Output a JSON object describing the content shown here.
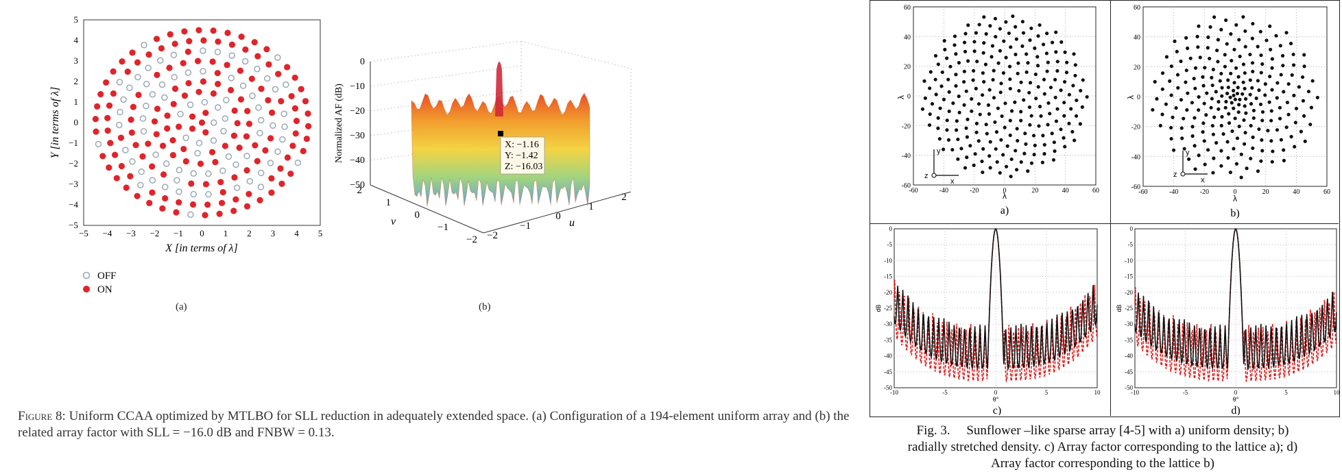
{
  "left_figure": {
    "panel_a": {
      "xlabel": "X [in terms of λ]",
      "ylabel": "Y [in terms of λ]",
      "x_ticks": [
        "−5",
        "−4",
        "−3",
        "−2",
        "−1",
        "0",
        "1",
        "2",
        "3",
        "4",
        "5"
      ],
      "y_ticks": [
        "5",
        "4",
        "3",
        "2",
        "1",
        "0",
        "−1",
        "−2",
        "−3",
        "−4",
        "−5"
      ],
      "legend_off": "OFF",
      "legend_on": "ON",
      "sublabel": "(a)"
    },
    "panel_b": {
      "zlabel": "Normalized AF (dB)",
      "z_ticks": [
        "0",
        "−10",
        "−20",
        "−30",
        "−40",
        "−50"
      ],
      "v_label": "v",
      "u_label": "u",
      "v_ticks": [
        "2",
        "1",
        "0",
        "−1",
        "−2"
      ],
      "u_ticks": [
        "−2",
        "−1",
        "0",
        "1",
        "2"
      ],
      "tooltip_x": "X: −1.16",
      "tooltip_y": "Y: −1.42",
      "tooltip_z": "Z: −16.03",
      "sublabel": "(b)"
    },
    "caption_prefix": "Figure 8:",
    "caption_text": "Uniform CCAA optimized by MTLBO for SLL reduction in adequately extended space. (a) Configuration of a 194-element uniform array and (b) the related array factor with SLL = −16.0 dB and FNBW = 0.13."
  },
  "right_figure": {
    "panel_a": {
      "sublabel": "a)",
      "ylabel": "λ",
      "xlabel": "λ",
      "ticks": [
        "-60",
        "-40",
        "-20",
        "0",
        "20",
        "40",
        "60"
      ],
      "y_ticks": [
        "60",
        "40",
        "20",
        "0",
        "-20",
        "-40",
        "-60"
      ],
      "axis_y": "y",
      "axis_x": "x",
      "axis_z": "z"
    },
    "panel_b": {
      "sublabel": "b)",
      "ylabel": "λ",
      "xlabel": "λ",
      "ticks": [
        "-60",
        "-40",
        "-20",
        "0",
        "20",
        "40",
        "60"
      ],
      "y_ticks": [
        "60",
        "40",
        "20",
        "0",
        "-20",
        "-40",
        "-60"
      ],
      "axis_y": "y",
      "axis_x": "x",
      "axis_z": "z"
    },
    "panel_c": {
      "sublabel": "c)",
      "ylabel": "dB",
      "xlabel": "θ°",
      "x_ticks": [
        "-10",
        "-5",
        "0",
        "5",
        "10"
      ],
      "y_ticks": [
        "0",
        "-5",
        "-10",
        "-15",
        "-20",
        "-25",
        "-30",
        "-35",
        "-40",
        "-45",
        "-50"
      ]
    },
    "panel_d": {
      "sublabel": "d)",
      "ylabel": "dB",
      "xlabel": "θ°",
      "x_ticks": [
        "-10",
        "-5",
        "0",
        "5",
        "10"
      ],
      "y_ticks": [
        "0",
        "-5",
        "-10",
        "-15",
        "-20",
        "-25",
        "-30",
        "-35",
        "-40",
        "-45",
        "-50"
      ]
    },
    "caption_line1": "Fig. 3.     Sunflower –like sparse array [4-5] with a) uniform density; b)",
    "caption_line2": "radially stretched density. c) Array factor corresponding to the lattice a); d)",
    "caption_line3": "Array factor corresponding to the lattice b)"
  },
  "colors": {
    "on_dot": "#e0242a",
    "off_ring": "#9aa8b4",
    "dot_black": "#111111",
    "red_dashed": "#e01818"
  }
}
